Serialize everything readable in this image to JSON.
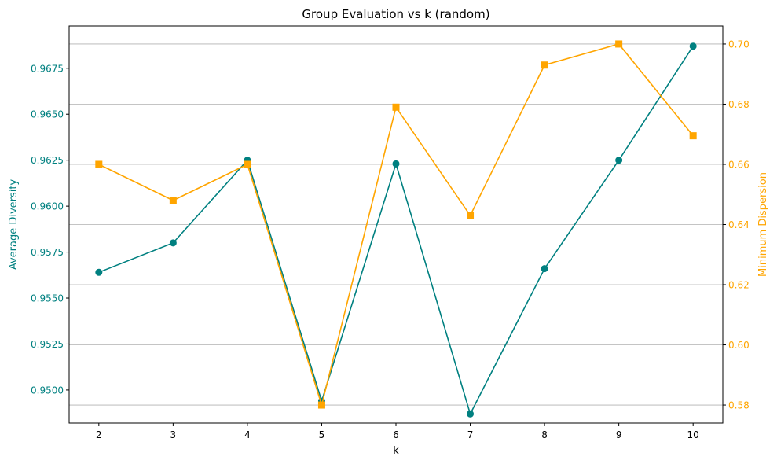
{
  "chart_data": {
    "type": "line",
    "title": "Group Evaluation vs k (random)",
    "xlabel": "k",
    "x": [
      2,
      3,
      4,
      5,
      6,
      7,
      8,
      9,
      10
    ],
    "xticks": [
      "2",
      "3",
      "4",
      "5",
      "6",
      "7",
      "8",
      "9",
      "10"
    ],
    "xlim": [
      1.6,
      10.4
    ],
    "grid": "horizontal (right axis)",
    "left_axis": {
      "label": "Average Diversity",
      "color": "#008080",
      "ylim": [
        0.9482,
        0.9698
      ],
      "ticks": [
        0.95,
        0.9525,
        0.955,
        0.9575,
        0.96,
        0.9625,
        0.965,
        0.9675
      ],
      "tick_labels": [
        "0.9500",
        "0.9525",
        "0.9550",
        "0.9575",
        "0.9600",
        "0.9625",
        "0.9650",
        "0.9675"
      ]
    },
    "right_axis": {
      "label": "Minimum Dispersion",
      "color": "#FFA500",
      "ylim": [
        0.574,
        0.706
      ],
      "ticks": [
        0.58,
        0.6,
        0.62,
        0.64,
        0.66,
        0.68,
        0.7
      ],
      "tick_labels": [
        "0.58",
        "0.60",
        "0.62",
        "0.64",
        "0.66",
        "0.68",
        "0.70"
      ]
    },
    "series": [
      {
        "axis": "left",
        "color": "#008080",
        "marker": "circle",
        "values": [
          0.9564,
          0.958,
          0.9625,
          0.9494,
          0.9623,
          0.9487,
          0.9566,
          0.9625,
          0.9687
        ]
      },
      {
        "axis": "right",
        "color": "#FFA500",
        "marker": "square",
        "values": [
          0.66,
          0.648,
          0.66,
          0.58,
          0.679,
          0.643,
          0.693,
          0.7,
          0.6695
        ]
      }
    ]
  }
}
